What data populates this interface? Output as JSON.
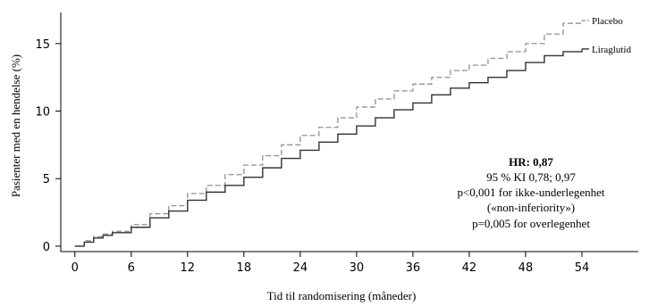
{
  "chart_data": {
    "type": "line",
    "title": "",
    "xlabel": "Tid til randomisering (måneder)",
    "ylabel": "Pasienter med en hendelse (%)",
    "xlim": [
      -1.5,
      60
    ],
    "ylim": [
      -0.4,
      17.3
    ],
    "x_ticks": [
      0,
      6,
      12,
      18,
      24,
      30,
      36,
      42,
      48,
      54
    ],
    "y_ticks": [
      0,
      5,
      10,
      15
    ],
    "grid": false,
    "series": [
      {
        "name": "Placebo",
        "style": "dashed",
        "color": "#999999",
        "x": [
          0,
          1,
          2,
          3,
          4,
          6,
          8,
          10,
          12,
          14,
          16,
          18,
          20,
          22,
          24,
          26,
          28,
          30,
          32,
          34,
          36,
          38,
          40,
          42,
          44,
          46,
          48,
          50,
          52,
          54
        ],
        "y": [
          0,
          0.4,
          0.7,
          0.9,
          1.1,
          1.6,
          2.4,
          3.0,
          3.9,
          4.5,
          5.3,
          6.0,
          6.7,
          7.5,
          8.2,
          8.8,
          9.5,
          10.3,
          10.9,
          11.5,
          12.0,
          12.5,
          13.0,
          13.4,
          13.9,
          14.4,
          15.0,
          15.7,
          16.5,
          16.7
        ]
      },
      {
        "name": "Liraglutid",
        "style": "solid",
        "color": "#333333",
        "x": [
          0,
          1,
          2,
          3,
          4,
          6,
          8,
          10,
          12,
          14,
          16,
          18,
          20,
          22,
          24,
          26,
          28,
          30,
          32,
          34,
          36,
          38,
          40,
          42,
          44,
          46,
          48,
          50,
          52,
          54
        ],
        "y": [
          0,
          0.3,
          0.6,
          0.8,
          1.0,
          1.4,
          2.1,
          2.6,
          3.4,
          4.0,
          4.5,
          5.1,
          5.8,
          6.5,
          7.1,
          7.7,
          8.3,
          8.9,
          9.5,
          10.1,
          10.6,
          11.2,
          11.7,
          12.1,
          12.5,
          13.0,
          13.6,
          14.1,
          14.4,
          14.6
        ]
      }
    ],
    "annotations": [
      "HR: 0,87",
      "95 % KI 0,78; 0,97",
      "p<0,001 for ikke-underlegenhet",
      "(«non-inferiority»)",
      "p=0,005 for overlegenhet"
    ],
    "legend": "series labels at line ends, right"
  }
}
